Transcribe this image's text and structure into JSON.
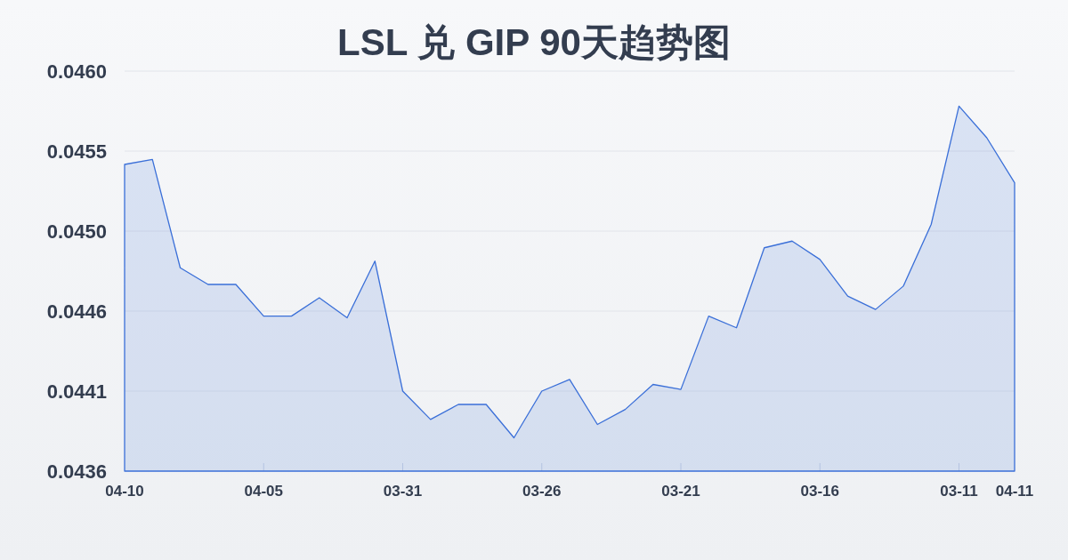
{
  "chart_data": {
    "type": "area",
    "title": "LSL 兑 GIP 90天趋势图",
    "categories": [
      "04-10",
      null,
      null,
      null,
      null,
      "04-05",
      null,
      null,
      null,
      null,
      "03-31",
      null,
      null,
      null,
      null,
      "03-26",
      null,
      null,
      null,
      null,
      "03-21",
      null,
      null,
      null,
      null,
      "03-16",
      null,
      null,
      null,
      null,
      "03-11",
      null,
      "04-11"
    ],
    "values": [
      0.04544,
      0.04547,
      0.04482,
      0.04472,
      0.04472,
      0.04453,
      0.04453,
      0.04464,
      0.04452,
      0.04486,
      0.04408,
      0.04391,
      0.044,
      0.044,
      0.0438,
      0.04408,
      0.04415,
      0.04388,
      0.04397,
      0.04412,
      0.04409,
      0.04453,
      0.04446,
      0.04494,
      0.04498,
      0.04487,
      0.04465,
      0.04457,
      0.04471,
      0.04508,
      0.04579,
      0.0456,
      0.04533
    ],
    "color": "#3a6fd8",
    "ylim": [
      0.0436,
      0.046
    ],
    "yticks": [
      0.0436,
      {
        "value": 0.04408,
        "label": "0.0441"
      },
      {
        "value": 0.04456,
        "label": "0.0446"
      },
      {
        "value": 0.04504,
        "label": "0.0450"
      },
      {
        "value": 0.04552,
        "label": "0.0455"
      },
      {
        "value": 0.046,
        "label": "0.0460"
      }
    ],
    "grid": "y"
  }
}
